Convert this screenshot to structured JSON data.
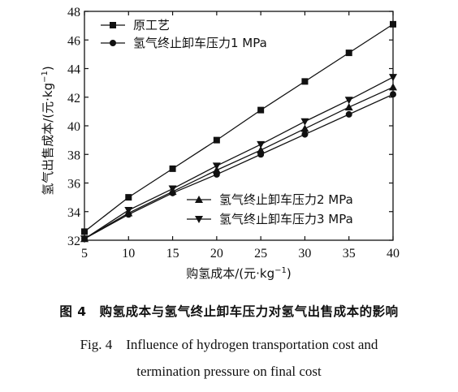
{
  "chart_data": {
    "type": "line",
    "xlabel": "购氢成本/(元·kg",
    "xlabel_sup": "−1",
    "xlabel_end": ")",
    "ylabel": "氢气出售成本/(元·kg",
    "ylabel_sup": "−1",
    "ylabel_end": ")",
    "xlim": [
      5,
      40
    ],
    "ylim": [
      32,
      48
    ],
    "x_ticks": [
      5,
      10,
      15,
      20,
      25,
      30,
      35,
      40
    ],
    "y_ticks": [
      32,
      34,
      36,
      38,
      40,
      42,
      44,
      46,
      48
    ],
    "x": [
      5,
      10,
      15,
      20,
      25,
      30,
      35,
      40
    ],
    "grid": false,
    "series": [
      {
        "name": "原工艺",
        "marker": "square",
        "values": [
          32.6,
          35.0,
          37.0,
          39.0,
          41.1,
          43.1,
          45.1,
          47.1
        ]
      },
      {
        "name": "氢气终止卸车压力1 MPa",
        "marker": "circle",
        "values": [
          32.1,
          33.8,
          35.3,
          36.6,
          38.0,
          39.4,
          40.8,
          42.2
        ]
      },
      {
        "name": "氢气终止卸车压力2 MPa",
        "marker": "triangle-up",
        "values": [
          32.1,
          33.9,
          35.4,
          36.9,
          38.3,
          39.8,
          41.3,
          42.7
        ]
      },
      {
        "name": "氢气终止卸车压力3 MPa",
        "marker": "triangle-down",
        "values": [
          32.1,
          34.1,
          35.6,
          37.2,
          38.7,
          40.3,
          41.8,
          43.4
        ]
      }
    ],
    "legend_top": [
      "原工艺",
      "氢气终止卸车压力1 MPa"
    ],
    "legend_bottom": [
      "氢气终止卸车压力2 MPa",
      "氢气终止卸车压力3 MPa"
    ]
  },
  "caption": {
    "cn": "图 4　购氢成本与氢气终止卸车压力对氢气出售成本的影响",
    "en_line1": "Fig. 4　Influence of hydrogen transportation cost and",
    "en_line2": "termination pressure on final cost"
  }
}
